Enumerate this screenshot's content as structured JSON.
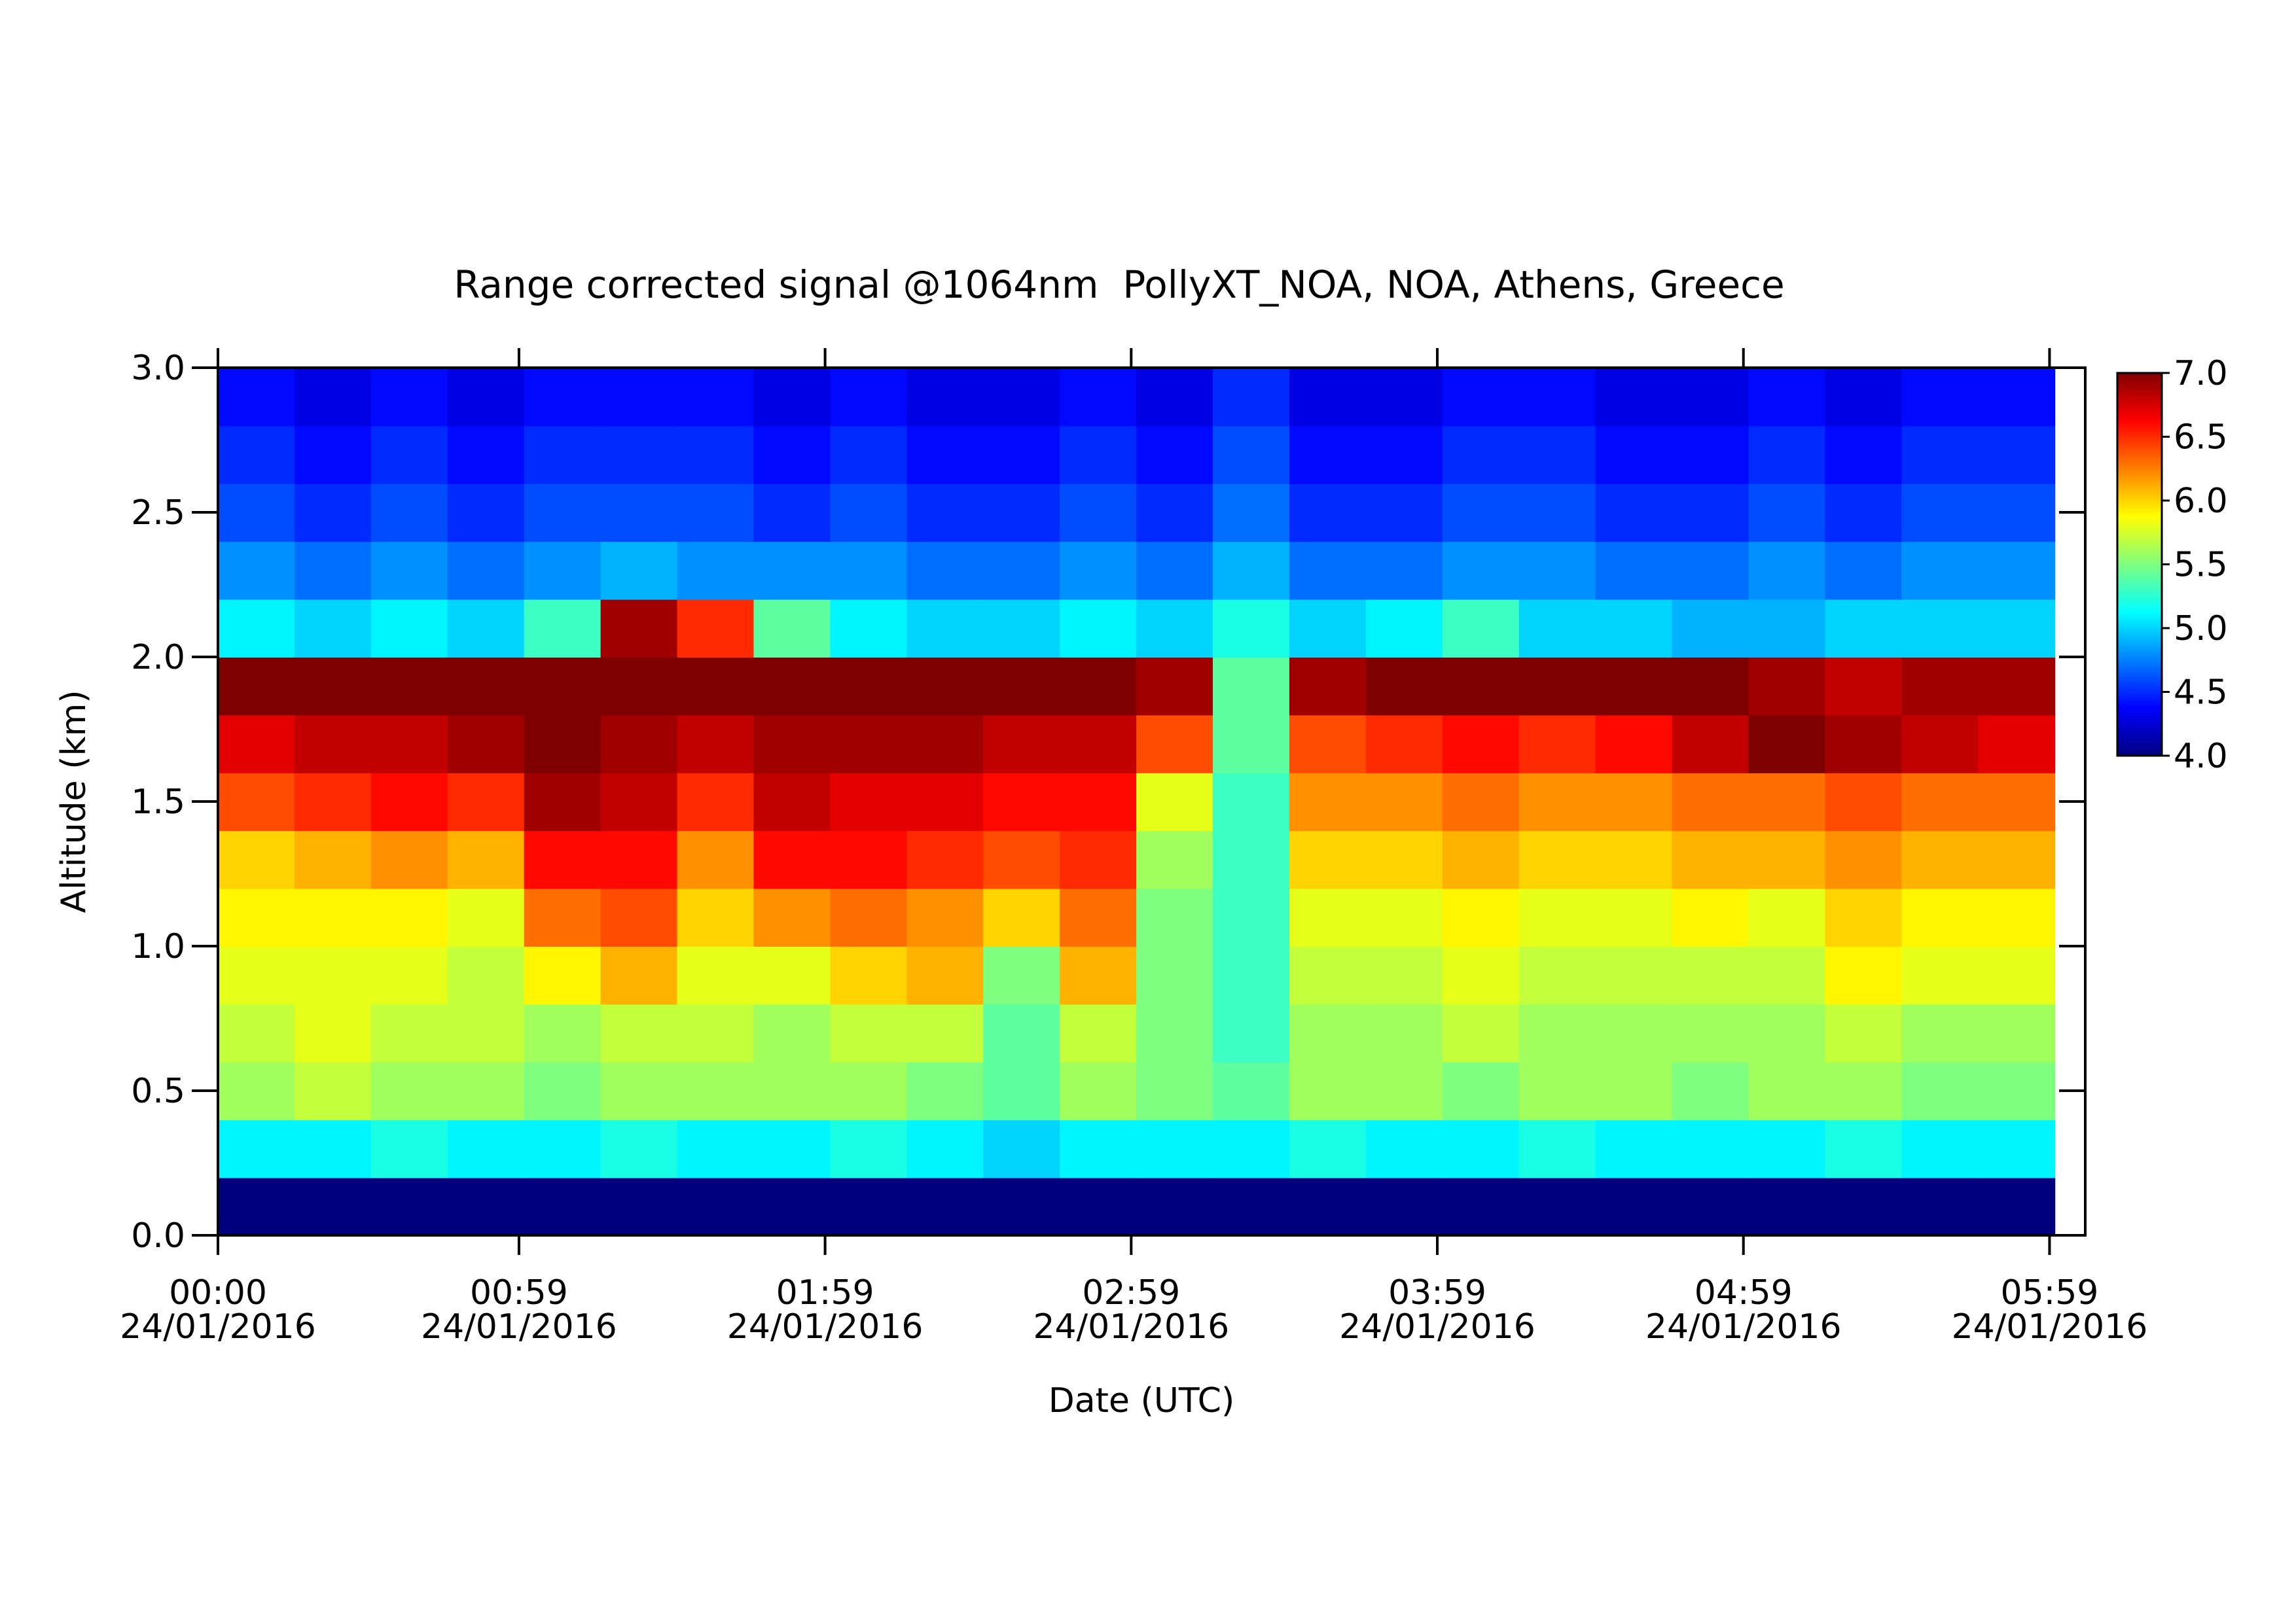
{
  "chart_data": {
    "type": "heatmap",
    "title": "Range corrected signal @1064nm  PollyXT_NOA, NOA, Athens, Greece",
    "xlabel": "Date (UTC)",
    "ylabel": "Altitude (km)",
    "xlim": [
      0,
      366
    ],
    "xticks": [
      {
        "value": 0,
        "label": "00:00\n24/01/2016"
      },
      {
        "value": 59,
        "label": "00:59\n24/01/2016"
      },
      {
        "value": 119,
        "label": "01:59\n24/01/2016"
      },
      {
        "value": 179,
        "label": "02:59\n24/01/2016"
      },
      {
        "value": 239,
        "label": "03:59\n24/01/2016"
      },
      {
        "value": 299,
        "label": "04:59\n24/01/2016"
      },
      {
        "value": 359,
        "label": "05:59\n24/01/2016"
      }
    ],
    "ylim": [
      0,
      3
    ],
    "yticks": [
      {
        "value": 0,
        "label": "0.0"
      },
      {
        "value": 0.5,
        "label": "0.5"
      },
      {
        "value": 1,
        "label": "1.0"
      },
      {
        "value": 1.5,
        "label": "1.5"
      },
      {
        "value": 2,
        "label": "2.0"
      },
      {
        "value": 2.5,
        "label": "2.5"
      },
      {
        "value": 3,
        "label": "3.0"
      }
    ],
    "zlim": [
      4,
      7
    ],
    "zticks": [
      {
        "value": 4,
        "label": "4.0"
      },
      {
        "value": 4.5,
        "label": "4.5"
      },
      {
        "value": 5,
        "label": "5.0"
      },
      {
        "value": 5.5,
        "label": "5.5"
      },
      {
        "value": 6,
        "label": "6.0"
      },
      {
        "value": 6.5,
        "label": "6.5"
      },
      {
        "value": 7,
        "label": "7.0"
      }
    ],
    "colormap": [
      "#00007f",
      "#0000ff",
      "#007fff",
      "#00ffff",
      "#7fff7f",
      "#ffff00",
      "#ff7f00",
      "#ff0000",
      "#7f0000"
    ],
    "x": [
      7.5,
      22.5,
      37.5,
      52.5,
      67.5,
      82.5,
      97.5,
      112.5,
      127.5,
      142.5,
      157.5,
      172.5,
      187.5,
      202.5,
      217.5,
      232.5,
      247.5,
      262.5,
      277.5,
      292.5,
      307.5,
      322.5,
      337.5,
      352.5
    ],
    "y": [
      0.1,
      0.3,
      0.5,
      0.7,
      0.9,
      1.1,
      1.3,
      1.5,
      1.7,
      1.9,
      2.1,
      2.3,
      2.5,
      2.7,
      2.9
    ],
    "z": [
      [
        4.0,
        4.0,
        4.0,
        4.0,
        4.0,
        4.0,
        4.0,
        4.0,
        4.0,
        4.0,
        4.0,
        4.0,
        4.0,
        4.0,
        4.0,
        4.0,
        4.0,
        4.0,
        4.0,
        4.0,
        4.0,
        4.0,
        4.0,
        4.0
      ],
      [
        5.1,
        5.1,
        5.2,
        5.1,
        5.1,
        5.2,
        5.1,
        5.1,
        5.2,
        5.1,
        5.0,
        5.1,
        5.1,
        5.1,
        5.2,
        5.1,
        5.1,
        5.2,
        5.1,
        5.1,
        5.1,
        5.2,
        5.1,
        5.1
      ],
      [
        5.6,
        5.7,
        5.6,
        5.6,
        5.5,
        5.6,
        5.6,
        5.6,
        5.6,
        5.5,
        5.4,
        5.6,
        5.5,
        5.4,
        5.6,
        5.6,
        5.5,
        5.6,
        5.6,
        5.5,
        5.6,
        5.6,
        5.5,
        5.5
      ],
      [
        5.7,
        5.8,
        5.7,
        5.7,
        5.6,
        5.7,
        5.7,
        5.6,
        5.7,
        5.7,
        5.4,
        5.7,
        5.5,
        5.3,
        5.6,
        5.6,
        5.7,
        5.6,
        5.6,
        5.6,
        5.6,
        5.7,
        5.6,
        5.6
      ],
      [
        5.8,
        5.8,
        5.8,
        5.7,
        5.9,
        6.1,
        5.8,
        5.8,
        6.0,
        6.1,
        5.5,
        6.1,
        5.5,
        5.3,
        5.7,
        5.7,
        5.8,
        5.7,
        5.7,
        5.7,
        5.7,
        5.9,
        5.8,
        5.8
      ],
      [
        5.9,
        5.9,
        5.9,
        5.8,
        6.3,
        6.4,
        6.0,
        6.2,
        6.3,
        6.2,
        6.0,
        6.3,
        5.5,
        5.3,
        5.8,
        5.8,
        5.9,
        5.8,
        5.8,
        5.9,
        5.8,
        6.0,
        5.9,
        5.9
      ],
      [
        6.0,
        6.1,
        6.2,
        6.1,
        6.6,
        6.6,
        6.2,
        6.6,
        6.6,
        6.5,
        6.4,
        6.5,
        5.6,
        5.3,
        6.0,
        6.0,
        6.1,
        6.0,
        6.0,
        6.1,
        6.1,
        6.2,
        6.1,
        6.1
      ],
      [
        6.4,
        6.5,
        6.6,
        6.5,
        6.9,
        6.8,
        6.5,
        6.8,
        6.7,
        6.7,
        6.6,
        6.6,
        5.8,
        5.3,
        6.2,
        6.2,
        6.3,
        6.2,
        6.2,
        6.3,
        6.3,
        6.4,
        6.3,
        6.3
      ],
      [
        6.7,
        6.8,
        6.8,
        6.9,
        7.0,
        6.9,
        6.8,
        6.9,
        6.9,
        6.9,
        6.8,
        6.8,
        6.4,
        5.4,
        6.4,
        6.5,
        6.6,
        6.5,
        6.6,
        6.8,
        7.0,
        6.9,
        6.8,
        6.7
      ],
      [
        7.0,
        7.0,
        7.0,
        7.0,
        7.0,
        7.0,
        7.0,
        7.0,
        7.0,
        7.0,
        7.0,
        7.0,
        6.9,
        5.4,
        6.9,
        7.0,
        7.0,
        7.0,
        7.0,
        7.0,
        6.9,
        6.8,
        6.9,
        6.9
      ],
      [
        5.1,
        5.0,
        5.1,
        5.0,
        5.3,
        6.9,
        6.5,
        5.4,
        5.1,
        5.0,
        5.0,
        5.1,
        5.0,
        5.2,
        5.0,
        5.1,
        5.3,
        5.0,
        5.0,
        4.9,
        4.9,
        5.0,
        5.0,
        5.0
      ],
      [
        4.8,
        4.7,
        4.8,
        4.7,
        4.8,
        4.9,
        4.8,
        4.8,
        4.8,
        4.7,
        4.7,
        4.8,
        4.7,
        4.9,
        4.7,
        4.7,
        4.8,
        4.8,
        4.7,
        4.7,
        4.8,
        4.7,
        4.8,
        4.8
      ],
      [
        4.6,
        4.5,
        4.6,
        4.5,
        4.6,
        4.6,
        4.6,
        4.5,
        4.6,
        4.5,
        4.5,
        4.6,
        4.5,
        4.7,
        4.5,
        4.5,
        4.6,
        4.6,
        4.5,
        4.5,
        4.6,
        4.5,
        4.6,
        4.6
      ],
      [
        4.5,
        4.4,
        4.5,
        4.4,
        4.5,
        4.5,
        4.5,
        4.4,
        4.5,
        4.4,
        4.4,
        4.5,
        4.4,
        4.6,
        4.4,
        4.4,
        4.5,
        4.5,
        4.4,
        4.4,
        4.5,
        4.4,
        4.5,
        4.5
      ],
      [
        4.4,
        4.3,
        4.4,
        4.3,
        4.4,
        4.4,
        4.4,
        4.3,
        4.4,
        4.3,
        4.3,
        4.4,
        4.3,
        4.5,
        4.3,
        4.3,
        4.4,
        4.4,
        4.3,
        4.3,
        4.4,
        4.3,
        4.4,
        4.4
      ]
    ]
  }
}
